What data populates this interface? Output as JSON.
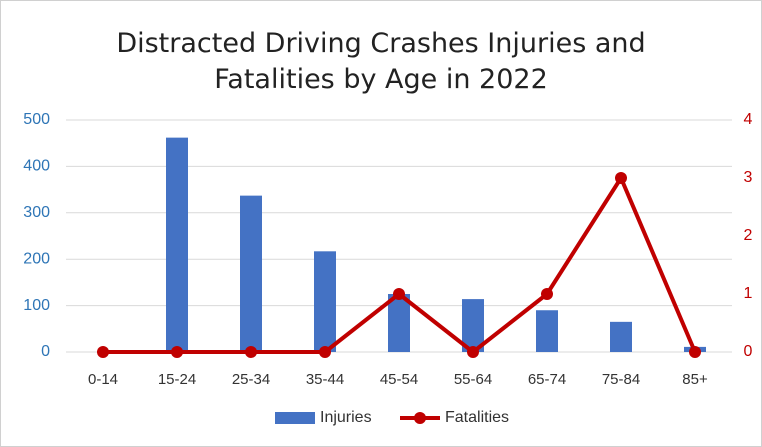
{
  "chart_data": {
    "type": "bar-line",
    "title": "Distracted Driving Crashes Injuries and Fatalities by Age in 2022",
    "categories": [
      "0-14",
      "15-24",
      "25-34",
      "35-44",
      "45-54",
      "55-64",
      "65-74",
      "75-84",
      "85+"
    ],
    "series": [
      {
        "name": "Injuries",
        "type": "bar",
        "color": "#4472c4",
        "values": [
          0,
          462,
          337,
          217,
          125,
          114,
          90,
          65,
          11
        ]
      },
      {
        "name": "Fatalities",
        "type": "line",
        "axis": "y2",
        "color": "#c00000",
        "values": [
          0,
          0,
          0,
          0,
          1,
          0,
          1,
          3,
          0
        ]
      }
    ],
    "ylim": [
      0,
      500
    ],
    "yticks": [
      0,
      100,
      200,
      300,
      400,
      500
    ],
    "y2lim": [
      0,
      4
    ],
    "y2ticks": [
      0,
      1,
      2,
      3,
      4
    ],
    "grid": true,
    "legend": "bottom"
  }
}
